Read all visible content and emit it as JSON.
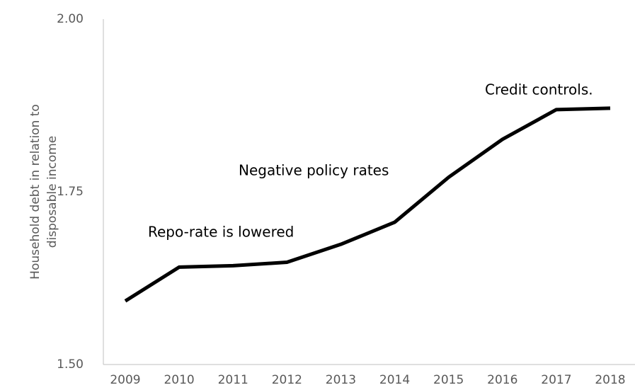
{
  "chart_data": {
    "type": "line",
    "y_label": [
      "Household debt in relation to",
      "disposable income"
    ],
    "annotations": [
      "Repo-rate is lowered",
      "Negative policy rates",
      "Credit controls."
    ],
    "categories": [
      "2009",
      "2010",
      "2011",
      "2012",
      "2013",
      "2014",
      "2015",
      "2016",
      "2017",
      "2018"
    ],
    "series": [
      {
        "name": "Household debt",
        "color": "#000000",
        "values": [
          1.592,
          1.641,
          1.643,
          1.648,
          1.674,
          1.706,
          1.771,
          1.826,
          1.869,
          1.871
        ]
      }
    ],
    "ylim": [
      1.5,
      2.0
    ],
    "yticks": [
      {
        "value": 1.5,
        "label": "1.50"
      },
      {
        "value": 1.75,
        "label": "1.75"
      },
      {
        "value": 2.0,
        "label": "2.00"
      }
    ],
    "grid": false
  }
}
